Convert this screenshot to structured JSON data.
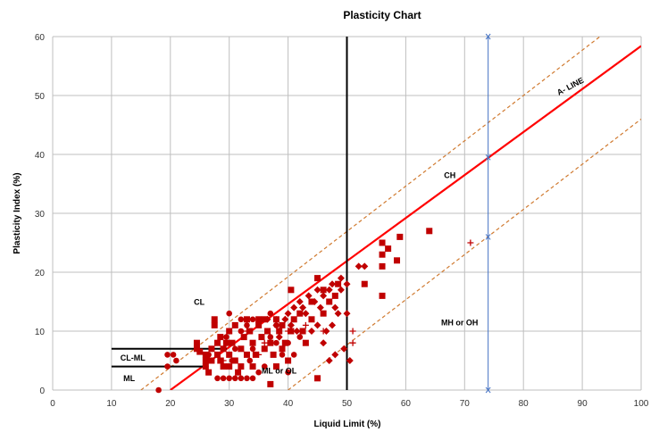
{
  "chart_data": {
    "type": "scatter",
    "title": "Plasticity Chart",
    "xlabel": "Liquid Limit (%)",
    "ylabel": "Plasticity Index (%)",
    "xlim": [
      0,
      100
    ],
    "ylim": [
      0,
      60
    ],
    "xticks": [
      "0",
      "10",
      "20",
      "30",
      "40",
      "50",
      "60",
      "70",
      "80",
      "90",
      "100"
    ],
    "yticks": [
      "0",
      "10",
      "20",
      "30",
      "40",
      "50",
      "60"
    ],
    "grid": true,
    "colors": {
      "data": "#c00000",
      "a_line": "#ff0000",
      "dashed": "#d07a30",
      "arrow": "#4472c4",
      "grid": "#bfbfbf"
    },
    "lines": [
      {
        "name": "A- LINE",
        "points": [
          [
            20,
            0
          ],
          [
            100,
            58.4
          ]
        ]
      },
      {
        "name": "upper-dashed",
        "points": [
          [
            15,
            0
          ],
          [
            93,
            60
          ]
        ]
      },
      {
        "name": "lower-dashed",
        "points": [
          [
            40,
            0
          ],
          [
            100,
            46
          ]
        ]
      },
      {
        "name": "LL=50",
        "points": [
          [
            50,
            0
          ],
          [
            50,
            60
          ]
        ]
      },
      {
        "name": "CL-ML upper",
        "points": [
          [
            10,
            7
          ],
          [
            29.6,
            7
          ]
        ]
      },
      {
        "name": "CL-ML lower",
        "points": [
          [
            10,
            4
          ],
          [
            25.5,
            4
          ]
        ]
      }
    ],
    "arrow": {
      "x": 74,
      "stops": [
        0,
        26,
        39.5,
        60
      ]
    },
    "annotations": [
      {
        "text": "CL",
        "x": 24,
        "y": 14.5
      },
      {
        "text": "CL-ML",
        "x": 11.5,
        "y": 5
      },
      {
        "text": "ML",
        "x": 12,
        "y": 1.5
      },
      {
        "text": "ML or OL",
        "x": 35.5,
        "y": 2.8
      },
      {
        "text": "CH",
        "x": 66.5,
        "y": 36
      },
      {
        "text": "MH or OH",
        "x": 66,
        "y": 11
      },
      {
        "text": "A- LINE",
        "x": 86,
        "y": 50,
        "rotate": -28
      }
    ],
    "series": [
      {
        "marker": "square",
        "points": [
          [
            24.5,
            8
          ],
          [
            24.5,
            7
          ],
          [
            25,
            6.5
          ],
          [
            26,
            6
          ],
          [
            26,
            5
          ],
          [
            26,
            4
          ],
          [
            26.5,
            3
          ],
          [
            27,
            5
          ],
          [
            27,
            7
          ],
          [
            27.5,
            11
          ],
          [
            27.5,
            12
          ],
          [
            28,
            6
          ],
          [
            28,
            8
          ],
          [
            28.5,
            9
          ],
          [
            28.5,
            5
          ],
          [
            29,
            4
          ],
          [
            29,
            7
          ],
          [
            29.5,
            8
          ],
          [
            30,
            10
          ],
          [
            30,
            6
          ],
          [
            30,
            4
          ],
          [
            30.5,
            8
          ],
          [
            31,
            11
          ],
          [
            31,
            5
          ],
          [
            31.5,
            3
          ],
          [
            32,
            4
          ],
          [
            32,
            7
          ],
          [
            32.5,
            9
          ],
          [
            33,
            6
          ],
          [
            33,
            12
          ],
          [
            33.5,
            10
          ],
          [
            34,
            8
          ],
          [
            34,
            4
          ],
          [
            34.5,
            6
          ],
          [
            35,
            11
          ],
          [
            35,
            12
          ],
          [
            35.5,
            9
          ],
          [
            36,
            7
          ],
          [
            36,
            12
          ],
          [
            36.5,
            10
          ],
          [
            37,
            1
          ],
          [
            37,
            8
          ],
          [
            37.5,
            6
          ],
          [
            38,
            4
          ],
          [
            38,
            12
          ],
          [
            38.5,
            10
          ],
          [
            39,
            11
          ],
          [
            39,
            7
          ],
          [
            39.5,
            8
          ],
          [
            40,
            5
          ],
          [
            40.5,
            10
          ],
          [
            40.5,
            17
          ],
          [
            41,
            12
          ],
          [
            42,
            13
          ],
          [
            42.5,
            10
          ],
          [
            43,
            8
          ],
          [
            44,
            12
          ],
          [
            44,
            15
          ],
          [
            45,
            2
          ],
          [
            45,
            19
          ],
          [
            46,
            13
          ],
          [
            46,
            17
          ],
          [
            47,
            15
          ],
          [
            48,
            16
          ],
          [
            48.5,
            18
          ],
          [
            53,
            18
          ],
          [
            56,
            25
          ],
          [
            56,
            23
          ],
          [
            56,
            21
          ],
          [
            56,
            16
          ],
          [
            57,
            24
          ],
          [
            58.5,
            22
          ],
          [
            59,
            26
          ],
          [
            64,
            27
          ]
        ]
      },
      {
        "marker": "circle",
        "points": [
          [
            18,
            0
          ],
          [
            19.5,
            4
          ],
          [
            19.5,
            6
          ],
          [
            20.5,
            6
          ],
          [
            21,
            5
          ],
          [
            26,
            4
          ],
          [
            26.5,
            6
          ],
          [
            27,
            5
          ],
          [
            28,
            2
          ],
          [
            28,
            6
          ],
          [
            29,
            2
          ],
          [
            29,
            4
          ],
          [
            29.5,
            9
          ],
          [
            30,
            13
          ],
          [
            30,
            2
          ],
          [
            30.5,
            5
          ],
          [
            31,
            2
          ],
          [
            31,
            7
          ],
          [
            32,
            2
          ],
          [
            32,
            10
          ],
          [
            32,
            12
          ],
          [
            33,
            2
          ],
          [
            33,
            11
          ],
          [
            33.5,
            5
          ],
          [
            34,
            2
          ],
          [
            34,
            7
          ],
          [
            34,
            12
          ],
          [
            35,
            3
          ],
          [
            35,
            12
          ],
          [
            36,
            4
          ],
          [
            37,
            13
          ],
          [
            37,
            9
          ],
          [
            38,
            8
          ],
          [
            38,
            11
          ],
          [
            39,
            6
          ],
          [
            40,
            8
          ],
          [
            40,
            3
          ],
          [
            41,
            12
          ],
          [
            41,
            6
          ],
          [
            42,
            9
          ]
        ]
      },
      {
        "marker": "diamond",
        "points": [
          [
            36.5,
            12
          ],
          [
            38,
            11
          ],
          [
            38.5,
            9
          ],
          [
            39.5,
            12
          ],
          [
            40,
            13
          ],
          [
            40.5,
            11
          ],
          [
            41,
            14
          ],
          [
            41.5,
            10
          ],
          [
            42,
            15
          ],
          [
            42.5,
            14
          ],
          [
            43,
            13
          ],
          [
            43.5,
            16
          ],
          [
            44,
            10
          ],
          [
            44.5,
            15
          ],
          [
            45,
            11
          ],
          [
            45,
            17
          ],
          [
            45.5,
            14
          ],
          [
            46,
            8
          ],
          [
            46,
            16
          ],
          [
            46.5,
            10
          ],
          [
            47,
            5
          ],
          [
            47,
            17
          ],
          [
            47.5,
            11
          ],
          [
            47.5,
            18
          ],
          [
            48,
            6
          ],
          [
            48,
            14
          ],
          [
            48.5,
            13
          ],
          [
            49,
            17
          ],
          [
            49,
            19
          ],
          [
            49.5,
            7
          ],
          [
            50,
            13
          ],
          [
            50,
            18
          ],
          [
            50.5,
            5
          ],
          [
            52,
            21
          ],
          [
            53,
            21
          ]
        ]
      },
      {
        "marker": "plus",
        "points": [
          [
            33,
            10
          ],
          [
            36,
            8
          ],
          [
            38,
            12
          ],
          [
            43,
            11
          ],
          [
            46,
            10
          ],
          [
            51,
            10
          ],
          [
            51,
            8
          ],
          [
            71,
            25
          ],
          [
            29,
            5
          ],
          [
            35,
            6
          ],
          [
            40,
            10
          ]
        ]
      }
    ]
  }
}
